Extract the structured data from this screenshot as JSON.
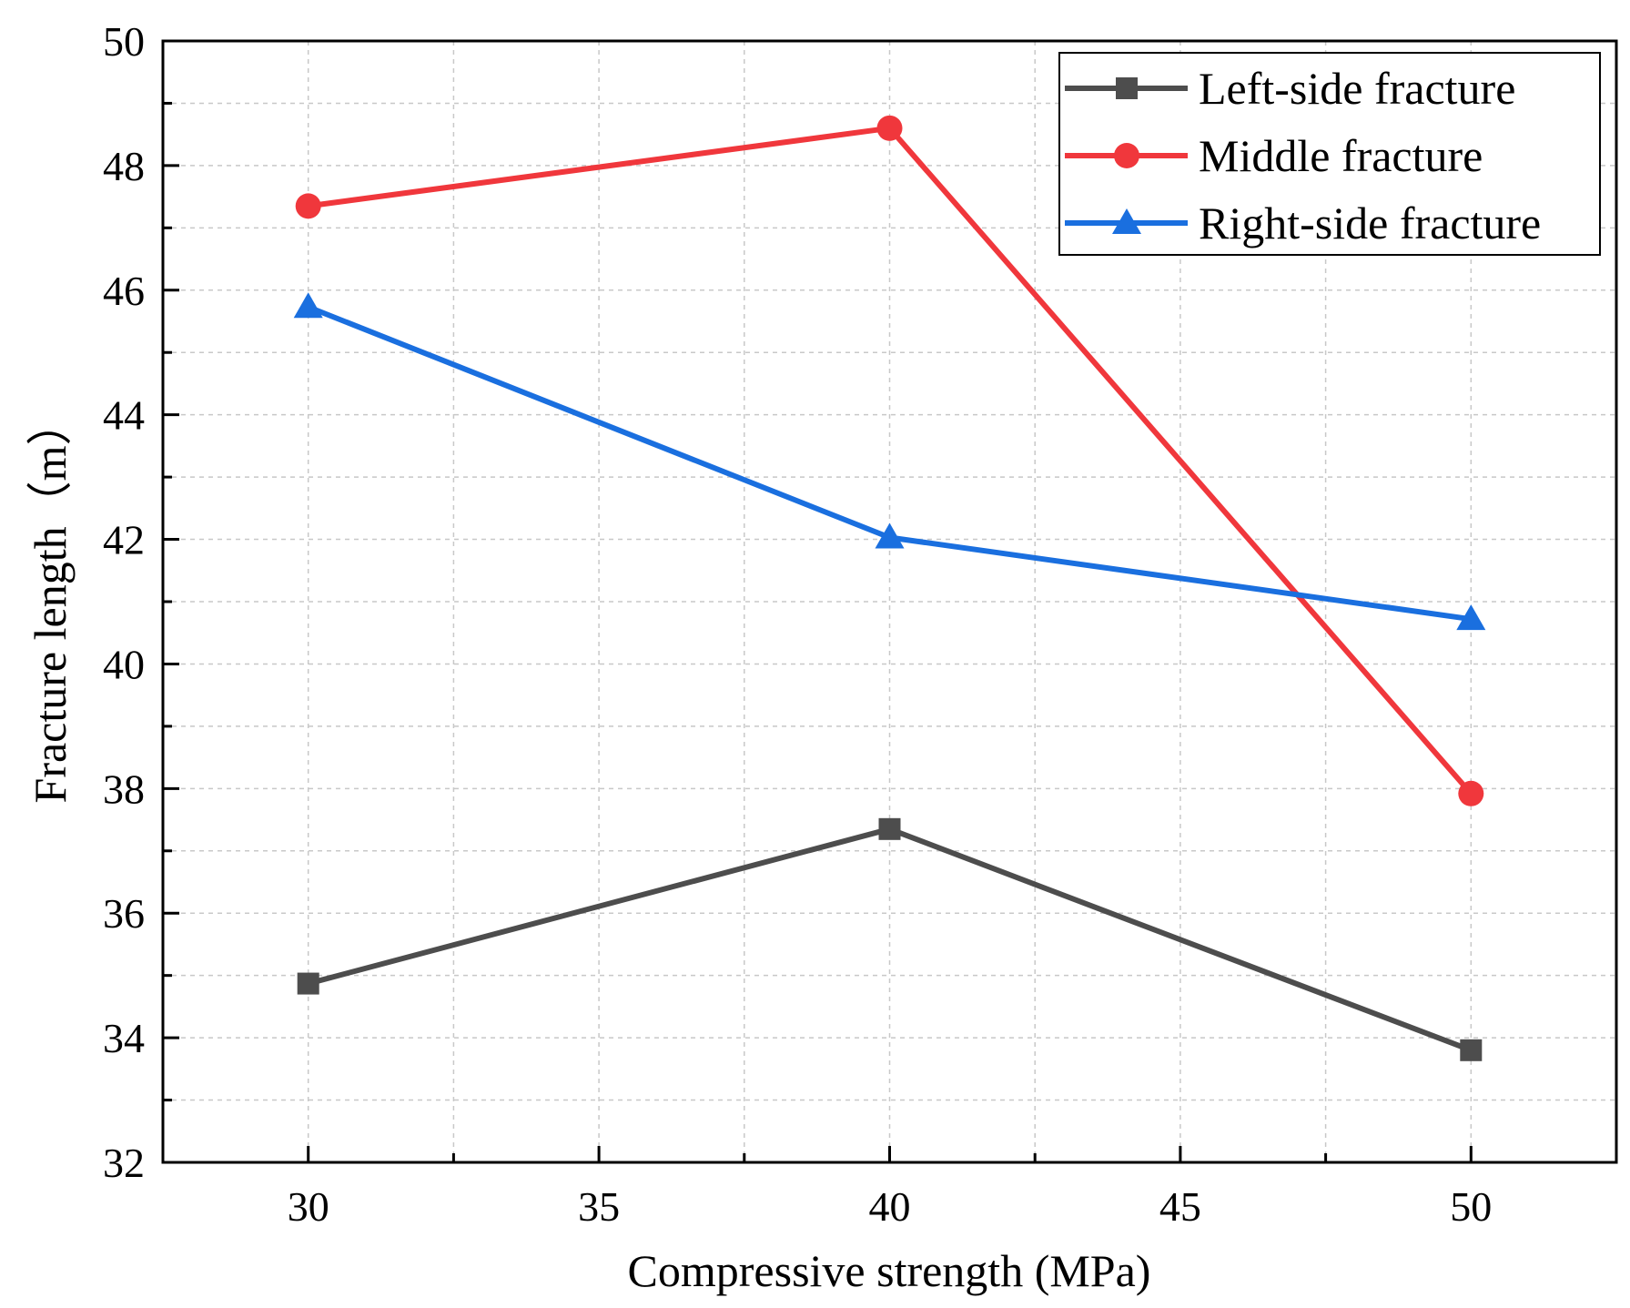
{
  "chart_data": {
    "type": "line",
    "xlabel": "Compressive strength (MPa)",
    "ylabel": "Fracture length（m）",
    "xlim": [
      27.5,
      52.5
    ],
    "ylim": [
      32,
      50
    ],
    "x": [
      30,
      40,
      50
    ],
    "x_ticks": [
      30,
      35,
      40,
      45,
      50
    ],
    "x_minor_ticks": [
      32.5,
      37.5,
      42.5,
      47.5
    ],
    "y_ticks": [
      32,
      34,
      36,
      38,
      40,
      42,
      44,
      46,
      48,
      50
    ],
    "y_minor_ticks": [
      33,
      35,
      37,
      39,
      41,
      43,
      45,
      47,
      49
    ],
    "grid": true,
    "legend_position": "top-right",
    "series": [
      {
        "name": "Left-side fracture",
        "values": [
          34.87,
          37.35,
          33.8
        ],
        "color": "#4d4d4d",
        "marker": "square"
      },
      {
        "name": "Middle fracture",
        "values": [
          47.35,
          48.6,
          37.92
        ],
        "color": "#f0373c",
        "marker": "circle"
      },
      {
        "name": "Right-side fracture",
        "values": [
          45.73,
          42.03,
          40.72
        ],
        "color": "#1a6fdf",
        "marker": "triangle"
      }
    ]
  }
}
